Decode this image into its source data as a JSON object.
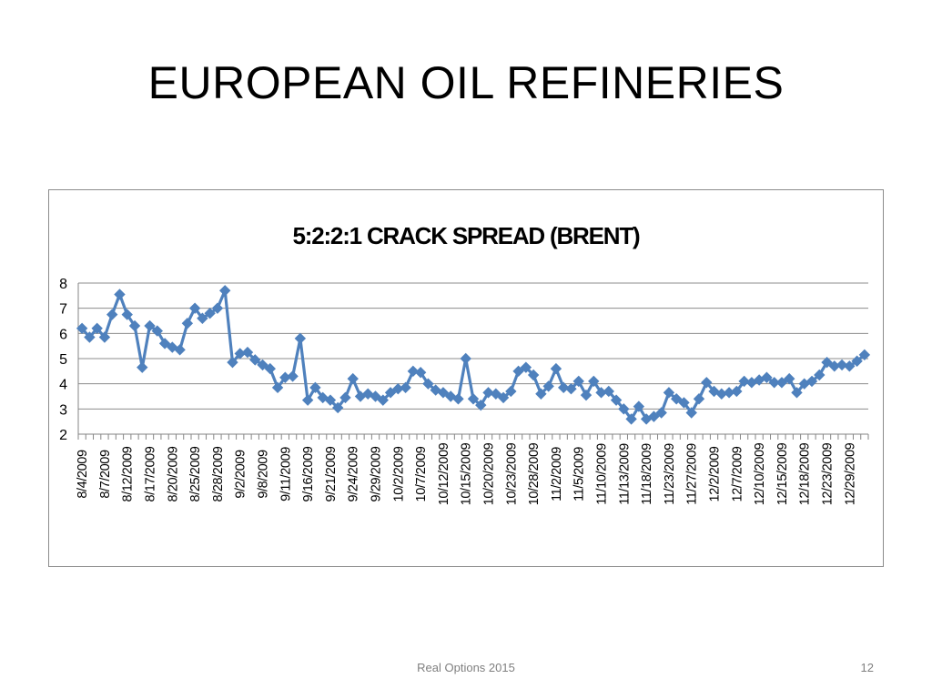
{
  "slide": {
    "title": "EUROPEAN OIL REFINERIES",
    "footer": "Real Options 2015",
    "page_number": "12"
  },
  "colors": {
    "series": "#4f81bd",
    "grid": "#8c8c8c",
    "axis": "#868686",
    "text": "#000000",
    "footer": "#7f7f7f"
  },
  "chart_data": {
    "type": "line",
    "title": "5:2:2:1 CRACK SPREAD (BRENT)",
    "xlabel": "",
    "ylabel": "",
    "ylim": [
      2,
      8
    ],
    "yticks": [
      "2",
      "3",
      "4",
      "5",
      "6",
      "7",
      "8"
    ],
    "grid": true,
    "legend": "none",
    "marker": "diamond",
    "x_tick_labels": [
      "8/4/2009",
      "8/7/2009",
      "8/12/2009",
      "8/17/2009",
      "8/20/2009",
      "8/25/2009",
      "8/28/2009",
      "9/2/2009",
      "9/8/2009",
      "9/11/2009",
      "9/16/2009",
      "9/21/2009",
      "9/24/2009",
      "9/29/2009",
      "10/2/2009",
      "10/7/2009",
      "10/12/2009",
      "10/15/2009",
      "10/20/2009",
      "10/23/2009",
      "10/28/2009",
      "11/2/2009",
      "11/5/2009",
      "11/10/2009",
      "11/13/2009",
      "11/18/2009",
      "11/23/2009",
      "11/27/2009",
      "12/2/2009",
      "12/7/2009",
      "12/10/2009",
      "12/15/2009",
      "12/18/2009",
      "12/23/2009",
      "12/29/2009"
    ],
    "series": [
      {
        "values": [
          6.2,
          5.85,
          6.2,
          5.85,
          6.75,
          7.55,
          6.75,
          6.3,
          4.65,
          6.3,
          6.1,
          5.6,
          5.45,
          5.35,
          6.4,
          7.0,
          6.6,
          6.8,
          7.0,
          7.7,
          4.85,
          5.2,
          5.25,
          4.95,
          4.75,
          4.6,
          3.85,
          4.25,
          4.3,
          5.8,
          3.35,
          3.85,
          3.45,
          3.35,
          3.05,
          3.45,
          4.2,
          3.5,
          3.6,
          3.5,
          3.35,
          3.65,
          3.8,
          3.85,
          4.5,
          4.45,
          4.0,
          3.75,
          3.65,
          3.5,
          3.4,
          5.0,
          3.4,
          3.15,
          3.65,
          3.6,
          3.45,
          3.7,
          4.5,
          4.65,
          4.35,
          3.6,
          3.9,
          4.6,
          3.85,
          3.8,
          4.1,
          3.55,
          4.1,
          3.65,
          3.7,
          3.35,
          3.0,
          2.6,
          3.1,
          2.6,
          2.7,
          2.85,
          3.65,
          3.4,
          3.25,
          2.85,
          3.4,
          4.05,
          3.7,
          3.6,
          3.65,
          3.7,
          4.1,
          4.05,
          4.15,
          4.25,
          4.05,
          4.05,
          4.2,
          3.65,
          4.0,
          4.1,
          4.35,
          4.85,
          4.7,
          4.75,
          4.7,
          4.9,
          5.15
        ]
      }
    ]
  }
}
